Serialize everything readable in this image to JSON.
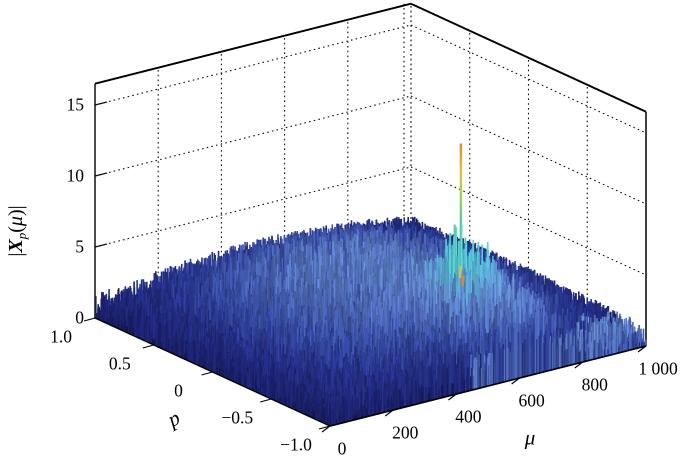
{
  "figure": {
    "background": "#ffffff"
  },
  "chart_data": {
    "type": "surface3d",
    "plot_style": "MATLAB-like mesh plot, jet colormap, dotted grid on back walls, white background",
    "title": "",
    "x_axis": {
      "label": "μ",
      "range": [
        0,
        1000
      ],
      "tick_labels": [
        "0",
        "200",
        "400",
        "600",
        "800",
        "1 000"
      ],
      "tick_values": [
        0,
        200,
        400,
        600,
        800,
        1000
      ]
    },
    "y_axis": {
      "label": "p",
      "range": [
        -1,
        1
      ],
      "tick_labels": [
        "1.0",
        "0.5",
        "0",
        "−0.5",
        "−1.0"
      ],
      "tick_values": [
        1,
        0.5,
        0,
        -0.5,
        -1
      ]
    },
    "z_axis": {
      "label": "|Xp(μ)|",
      "label_parts": [
        "|",
        "X",
        "p",
        "(",
        "μ",
        ")|"
      ],
      "range": [
        0,
        16.5
      ],
      "tick_labels": [
        "0",
        "5",
        "10",
        "15"
      ],
      "tick_values": [
        0,
        5,
        10,
        15
      ]
    },
    "surface": {
      "description": "Noisy magnitude floor over the full (mu, p) plane: broad dark-navy dome of noise approx 0.5-4.5 high, a light-blue elevated mound around the dominant peak extending toward the front edge, and one sharp dominant spike with small sidelobe spikes beside it",
      "noise_floor_range": [
        0.3,
        5
      ],
      "dome_peak_height": 4.5,
      "main_peak": {
        "mu": 600,
        "p": -0.5,
        "value": 14.6
      },
      "secondary_peaks": [
        {
          "mu": 582,
          "p": -0.5,
          "value": 9.0
        },
        {
          "mu": 604,
          "p": -0.51,
          "value": 6.2
        },
        {
          "mu": 594,
          "p": -0.54,
          "value": 5.2
        }
      ],
      "bright_region": {
        "mu_center": 610,
        "p_center": -0.55,
        "note": "light-blue raised area around peak, reaching the front-right bottom edge"
      },
      "colors": {
        "floor_navy": "#232a7e",
        "mid_blue": "#4a66b4",
        "light_blue": "#5f84c8",
        "cyan": "#4fb3cf",
        "yellow": "#e3c43c",
        "orange": "#f09c2c",
        "grid": "#111111",
        "box": "#000000",
        "background": "#ffffff"
      }
    },
    "grid": "dotted lines on the two back walls at every axis tick and z levels 5, 10, 15"
  }
}
